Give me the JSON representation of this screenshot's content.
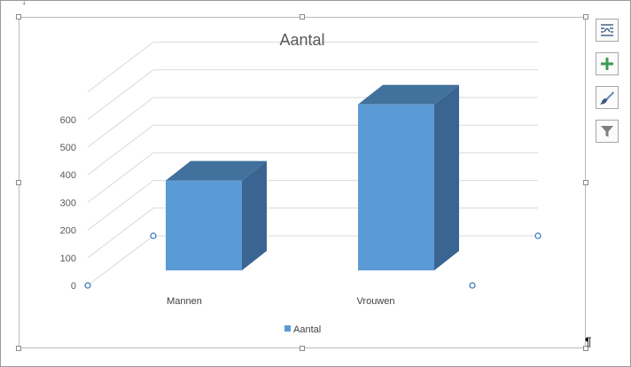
{
  "chart_data": {
    "type": "bar",
    "title": "Aantal",
    "categories": [
      "Mannen",
      "Vrouwen"
    ],
    "series": [
      {
        "name": "Aantal",
        "values": [
          325,
          600
        ]
      }
    ],
    "yticks": [
      "0",
      "100",
      "200",
      "300",
      "400",
      "500",
      "600"
    ],
    "ylim": [
      0,
      700
    ],
    "grid": true,
    "legend": "bottom",
    "style": "3d-column",
    "colors": {
      "front": "#5b9bd5",
      "side": "#3a6592",
      "top": "#41719c",
      "grid": "#d9d9d9",
      "text": "#595959"
    }
  },
  "tools": [
    {
      "name": "layout-options",
      "icon": "wrap-text-icon"
    },
    {
      "name": "chart-elements",
      "icon": "plus-icon"
    },
    {
      "name": "chart-styles",
      "icon": "paintbrush-icon"
    },
    {
      "name": "chart-filters",
      "icon": "funnel-icon"
    }
  ],
  "marks": {
    "paragraph": "¶",
    "anchor": "‡"
  }
}
